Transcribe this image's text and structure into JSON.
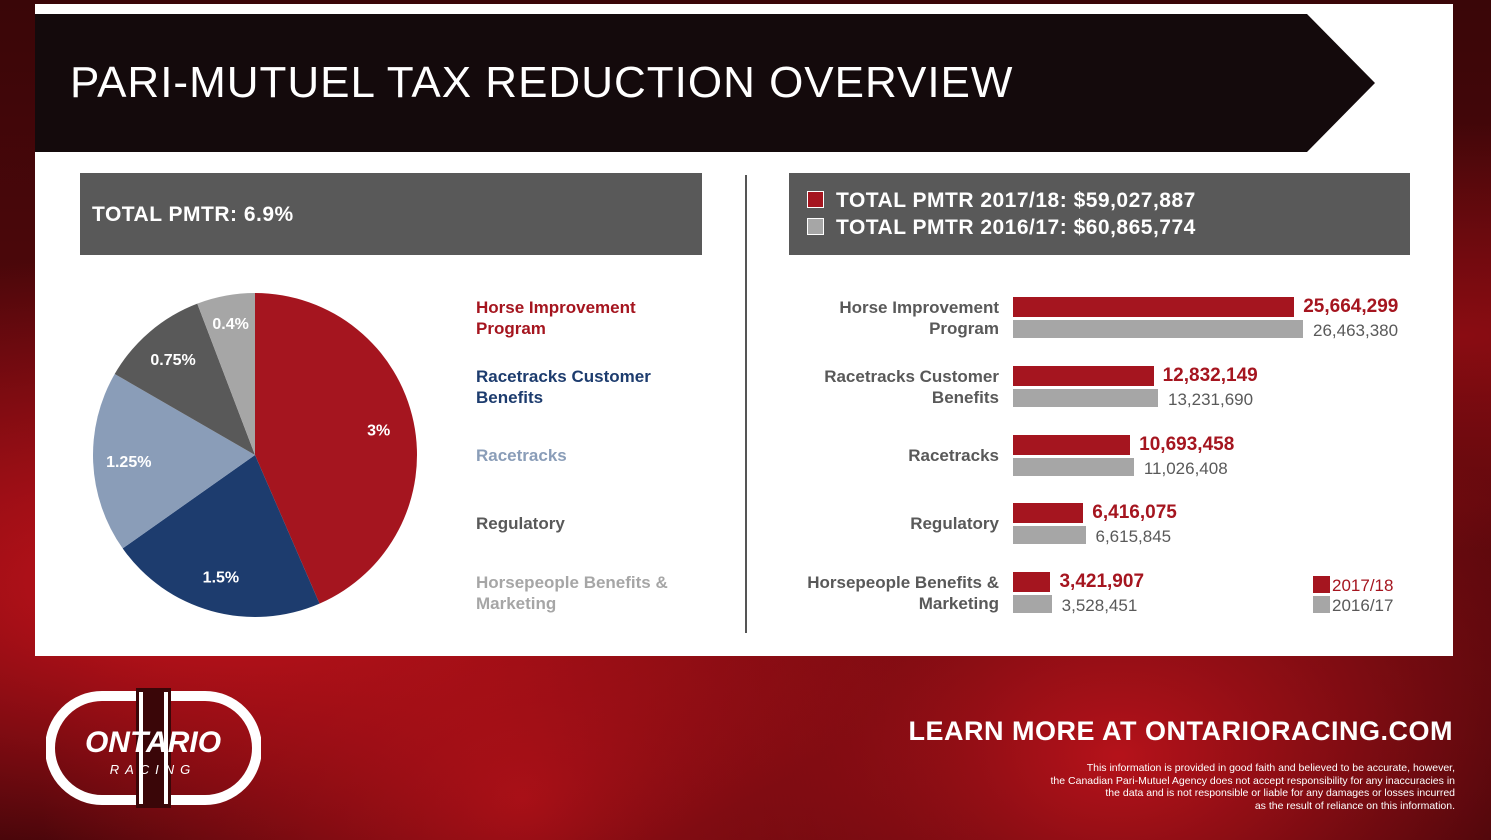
{
  "title": "PARI-MUTUEL TAX REDUCTION OVERVIEW",
  "left_header": "TOTAL PMTR: 6.9%",
  "right_header": {
    "line1": "TOTAL PMTR 2017/18: $59,027,887",
    "line2": "TOTAL PMTR 2016/17: $60,865,774"
  },
  "chart_data": [
    {
      "type": "pie",
      "slices": [
        {
          "label": "Horse Improvement Program",
          "value": 3,
          "display": "3%",
          "color": "#a5151f"
        },
        {
          "label": "Racetracks Customer Benefits",
          "value": 1.5,
          "display": "1.5%",
          "color": "#1d3c6e"
        },
        {
          "label": "Racetracks",
          "value": 1.25,
          "display": "1.25%",
          "color": "#8a9db8"
        },
        {
          "label": "Regulatory",
          "value": 0.75,
          "display": "0.75%",
          "color": "#595959"
        },
        {
          "label": "Horsepeople Benefits & Marketing",
          "value": 0.4,
          "display": "0.4%",
          "color": "#a6a6a6"
        }
      ]
    },
    {
      "type": "bar",
      "orientation": "horizontal",
      "categories": [
        "Horse Improvement Program",
        "Racetracks Customer Benefits",
        "Racetracks",
        "Regulatory",
        "Horsepeople Benefits & Marketing"
      ],
      "series": [
        {
          "name": "2017/18",
          "color": "#a5151f",
          "values": [
            25664299,
            12832149,
            10693458,
            6416075,
            3421907
          ],
          "labels": [
            "25,664,299",
            "12,832,149",
            "10,693,458",
            "6,416,075",
            "3,421,907"
          ]
        },
        {
          "name": "2016/17",
          "color": "#a6a6a6",
          "values": [
            26463380,
            13231690,
            11026408,
            6615845,
            3528451
          ],
          "labels": [
            "26,463,380",
            "13,231,690",
            "11,026,408",
            "6,615,845",
            "3,528,451"
          ]
        }
      ],
      "legend": "bottom-right"
    }
  ],
  "pie_legend_lines": [
    [
      "Horse Improvement",
      "Program"
    ],
    [
      "Racetracks Customer",
      "Benefits"
    ],
    [
      "Racetracks"
    ],
    [
      "Regulatory"
    ],
    [
      "Horsepeople Benefits &",
      "Marketing"
    ]
  ],
  "bar_label_lines": [
    [
      "Horse Improvement",
      "Program"
    ],
    [
      "Racetracks Customer",
      "Benefits"
    ],
    [
      "Racetracks"
    ],
    [
      "Regulatory"
    ],
    [
      "Horsepeople Benefits &",
      "Marketing"
    ]
  ],
  "logo": {
    "top": "ONTARIO",
    "bottom": "RACING"
  },
  "footer": {
    "learn_more": "LEARN MORE AT ONTARIORACING.COM",
    "disclaimer": [
      "This information is provided in good faith and believed to be accurate, however,",
      "the Canadian Pari-Mutuel Agency does not accept responsibility for any inaccuracies in",
      "the data and is not responsible or liable for any damages or losses incurred",
      "as the result of reliance on this information."
    ]
  }
}
